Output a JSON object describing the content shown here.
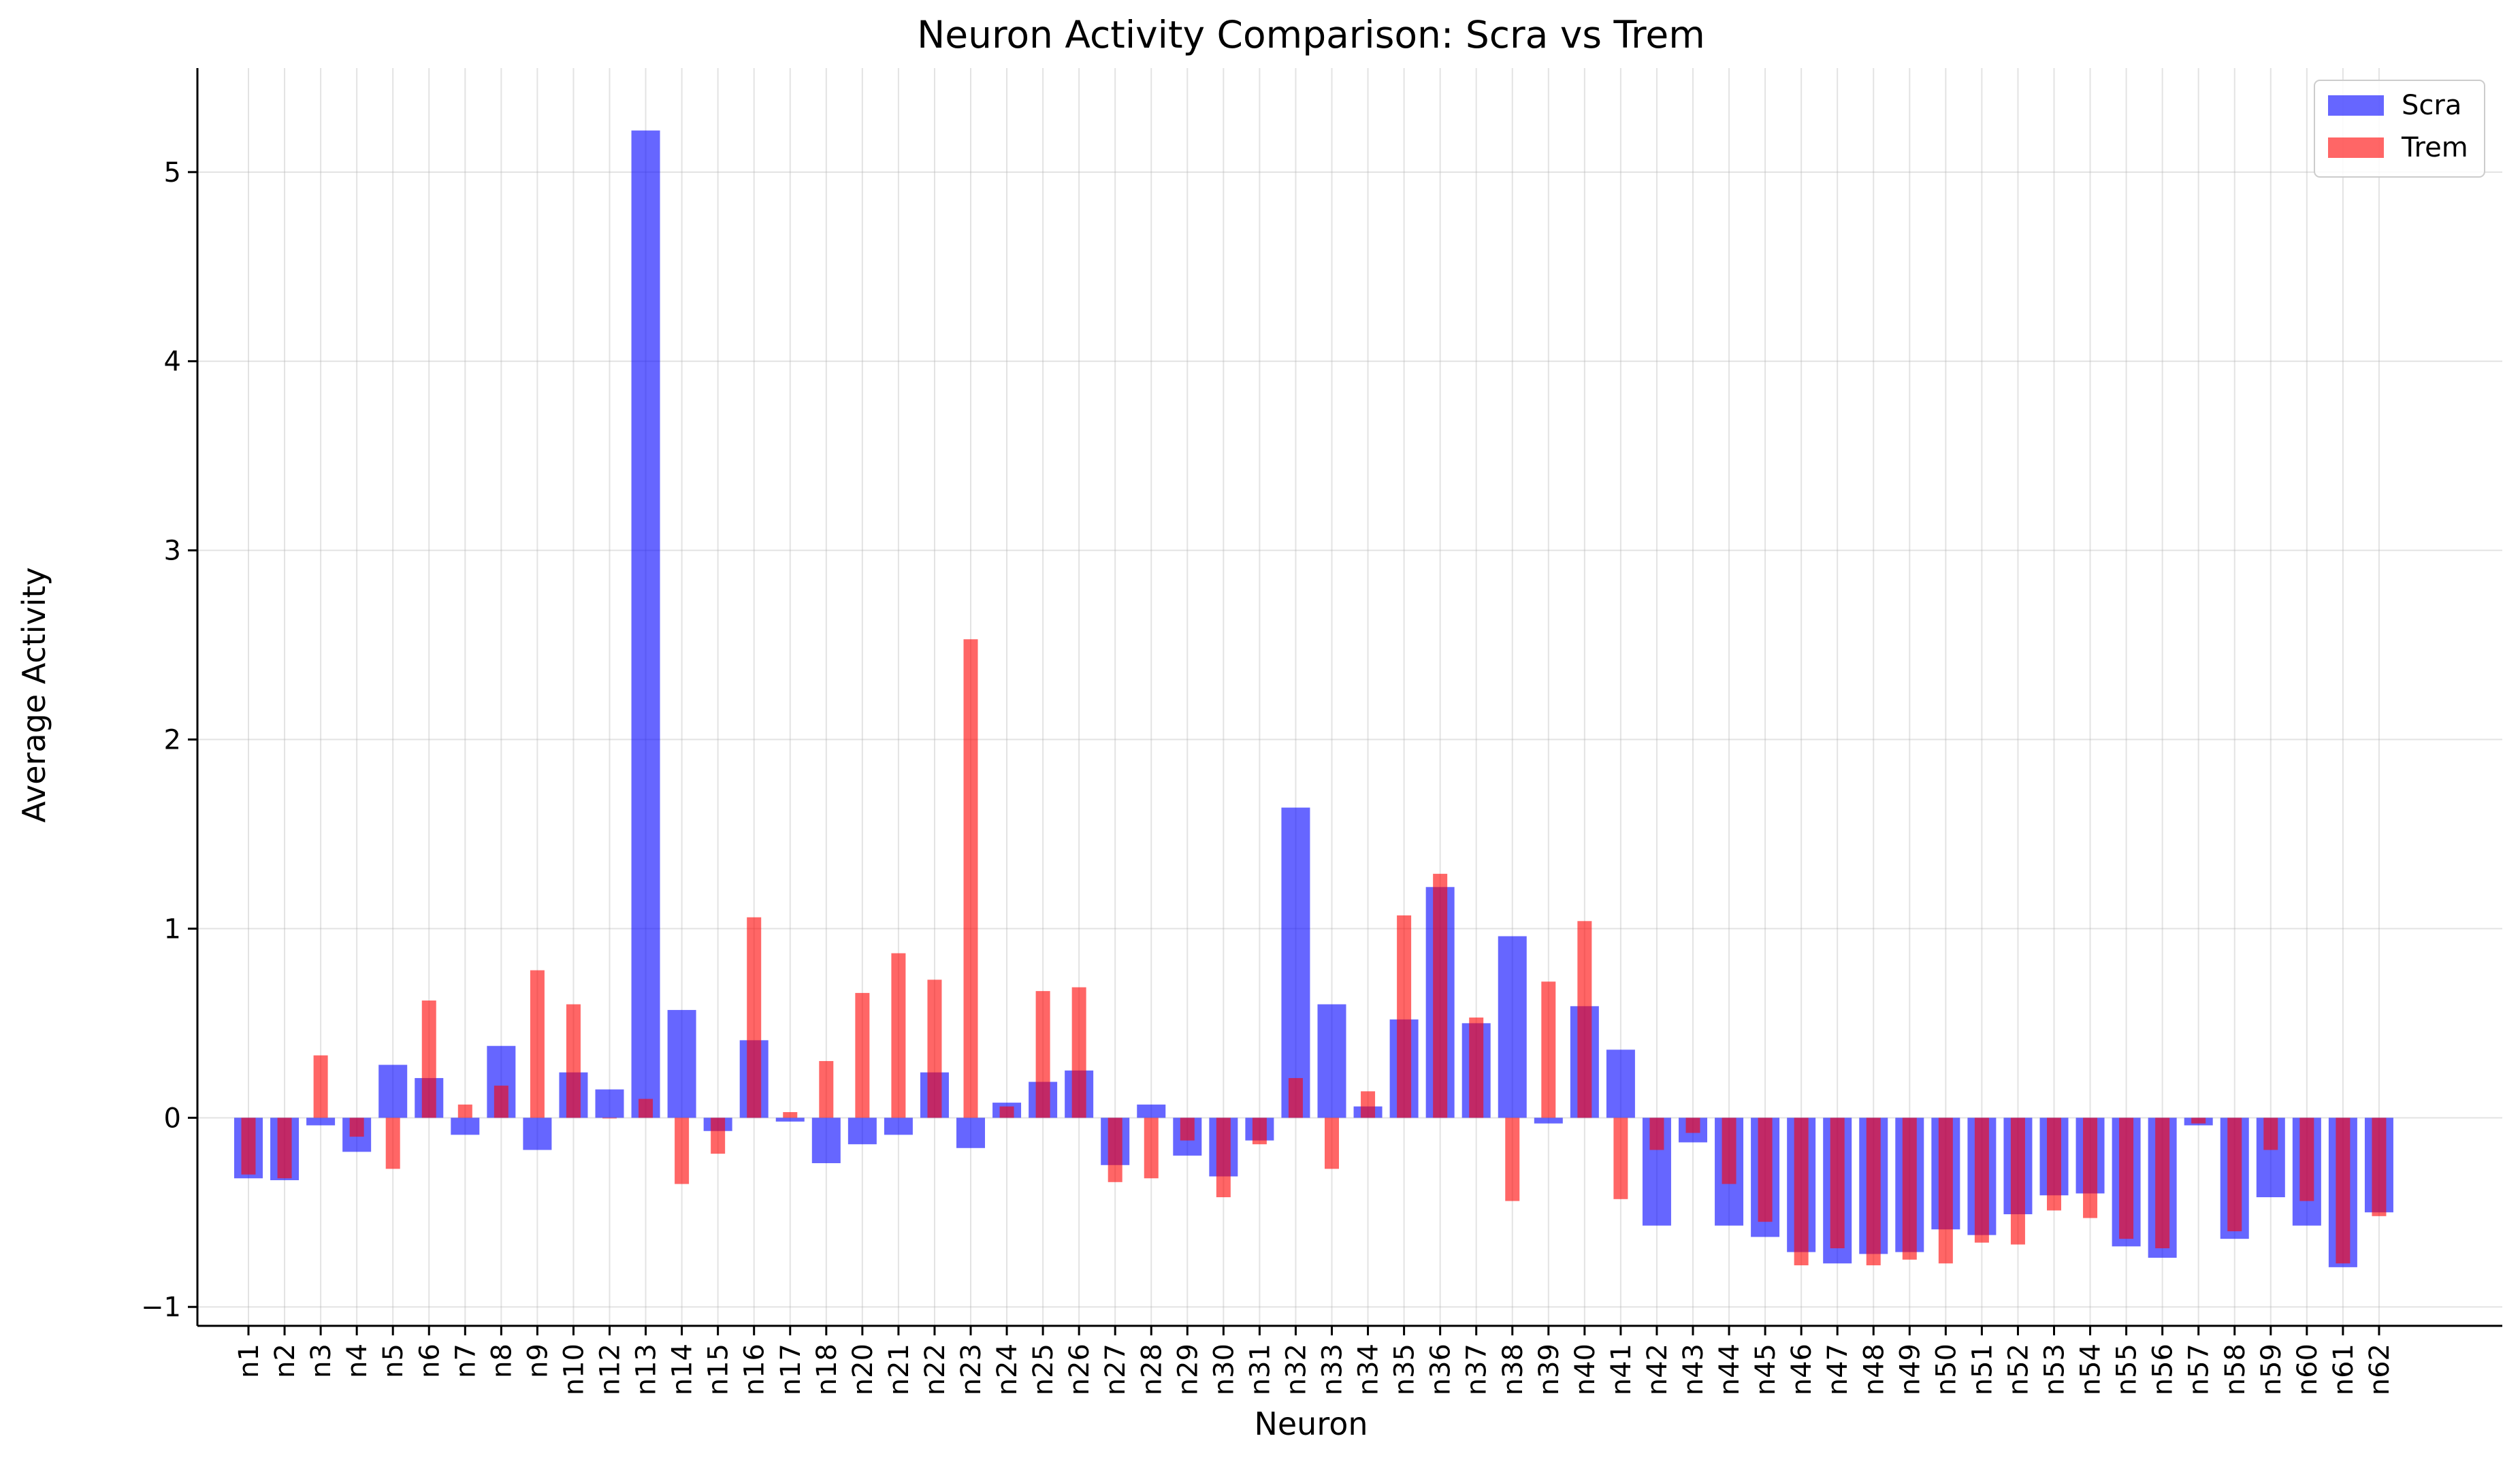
{
  "chart_data": {
    "type": "bar",
    "title": "Neuron Activity Comparison: Scra vs Trem",
    "xlabel": "Neuron",
    "ylabel": "Average Activity",
    "ylim": [
      -1.1,
      5.55
    ],
    "yticks": [
      -1,
      0,
      1,
      2,
      3,
      4,
      5
    ],
    "ytick_labels": [
      "−1",
      "0",
      "1",
      "2",
      "3",
      "4",
      "5"
    ],
    "grid": true,
    "legend_position": "top-right",
    "categories": [
      "n1",
      "n2",
      "n3",
      "n4",
      "n5",
      "n6",
      "n7",
      "n8",
      "n9",
      "n10",
      "n12",
      "n13",
      "n14",
      "n15",
      "n16",
      "n17",
      "n18",
      "n20",
      "n21",
      "n22",
      "n23",
      "n24",
      "n25",
      "n26",
      "n27",
      "n28",
      "n29",
      "n30",
      "n31",
      "n32",
      "n33",
      "n34",
      "n35",
      "n36",
      "n37",
      "n38",
      "n39",
      "n40",
      "n41",
      "n42",
      "n43",
      "n44",
      "n45",
      "n46",
      "n47",
      "n48",
      "n49",
      "n50",
      "n51",
      "n52",
      "n53",
      "n54",
      "n55",
      "n56",
      "n57",
      "n58",
      "n59",
      "n60",
      "n61",
      "n62"
    ],
    "series": [
      {
        "name": "Scra",
        "color": "#0000ff",
        "opacity": 0.6,
        "values": [
          -0.32,
          -0.33,
          -0.04,
          -0.18,
          0.28,
          0.21,
          -0.09,
          0.38,
          -0.17,
          0.24,
          0.15,
          5.22,
          0.57,
          -0.07,
          0.41,
          -0.02,
          -0.24,
          -0.14,
          -0.09,
          0.24,
          -0.16,
          0.08,
          0.19,
          0.25,
          -0.25,
          0.07,
          -0.2,
          -0.31,
          -0.12,
          1.64,
          0.6,
          0.06,
          0.52,
          1.22,
          0.5,
          0.96,
          -0.03,
          0.59,
          0.36,
          -0.57,
          -0.13,
          -0.57,
          -0.63,
          -0.71,
          -0.77,
          -0.72,
          -0.71,
          -0.59,
          -0.62,
          -0.51,
          -0.41,
          -0.4,
          -0.68,
          -0.74,
          -0.04,
          -0.64,
          -0.42,
          -0.57,
          -0.79,
          -0.5
        ]
      },
      {
        "name": "Trem",
        "color": "#ff0000",
        "opacity": 0.6,
        "values": [
          -0.3,
          -0.32,
          0.33,
          -0.1,
          -0.27,
          0.62,
          0.07,
          0.17,
          0.78,
          0.6,
          0.0,
          0.1,
          -0.35,
          -0.19,
          1.06,
          0.03,
          0.3,
          0.66,
          0.87,
          0.73,
          2.53,
          0.06,
          0.67,
          0.69,
          -0.34,
          -0.32,
          -0.12,
          -0.42,
          -0.14,
          0.21,
          -0.27,
          0.14,
          1.07,
          1.29,
          0.53,
          -0.44,
          0.72,
          1.04,
          -0.43,
          -0.17,
          -0.08,
          -0.35,
          -0.55,
          -0.78,
          -0.69,
          -0.78,
          -0.75,
          -0.77,
          -0.66,
          -0.67,
          -0.49,
          -0.53,
          -0.64,
          -0.69,
          -0.03,
          -0.6,
          -0.17,
          -0.44,
          -0.77,
          -0.52
        ]
      }
    ]
  }
}
